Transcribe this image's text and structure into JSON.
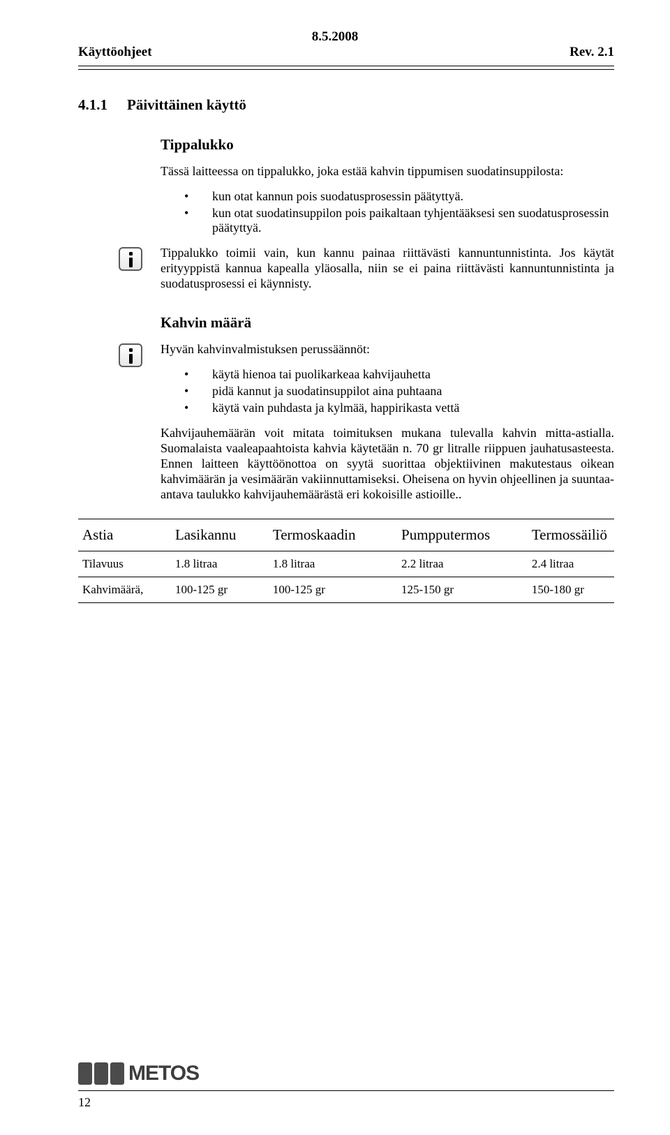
{
  "header": {
    "left": "Käyttöohjeet",
    "date": "8.5.2008",
    "rev": "Rev. 2.1"
  },
  "section": {
    "number": "4.1.1",
    "title": "Päivittäinen käyttö"
  },
  "tippalukko": {
    "heading": "Tippalukko",
    "intro": "Tässä laitteessa on tippalukko, joka estää kahvin tippumisen suodatinsuppilosta:",
    "bullets": [
      "kun otat kannun pois suodatusprosessin päätyttyä.",
      "kun otat suodatinsuppilon pois paikaltaan tyhjentääksesi sen suodatusprosessin päätyttyä."
    ],
    "info": "Tippalukko toimii vain, kun kannu painaa riittävästi kannuntunnistinta. Jos käytät erityyppistä kannua kapealla yläosalla, niin se ei paina riittävästi kannuntunnistinta ja suodatusprosessi ei käynnisty."
  },
  "kahvin": {
    "heading": "Kahvin määrä",
    "intro": "Hyvän kahvinvalmistuksen perussäännöt:",
    "bullets": [
      "käytä hienoa tai puolikarkeaa kahvijauhetta",
      "pidä kannut ja suodatinsuppilot aina puhtaana",
      "käytä vain puhdasta ja kylmää, happirikasta vettä"
    ],
    "para": "Kahvijauhemäärän voit mitata toimituksen mukana tulevalla kahvin mitta-astialla. Suomalaista vaaleapaahtoista kahvia käytetään n. 70 gr litralle riippuen jauhatusasteesta. Ennen laitteen käyttöönottoa on syytä suorittaa objektiivinen makutestaus oikean kahvimäärän ja vesimäärän vakiinnuttamiseksi. Oheisena on hyvin ohjeellinen ja suuntaa-antava taulukko kahvijauhemäärästä eri kokoisille astioille.."
  },
  "table": {
    "columns": [
      "Astia",
      "Lasikannu",
      "Termoskaadin",
      "Pumpputermos",
      "Termossäiliö"
    ],
    "rows": [
      [
        "Tilavuus",
        "1.8 litraa",
        "1.8 litraa",
        "2.2 litraa",
        "2.4 litraa"
      ],
      [
        "Kahvimäärä,",
        "100-125 gr",
        "100-125 gr",
        "125-150 gr",
        "150-180 gr"
      ]
    ]
  },
  "footer": {
    "logo_text": "METOS",
    "page": "12"
  }
}
